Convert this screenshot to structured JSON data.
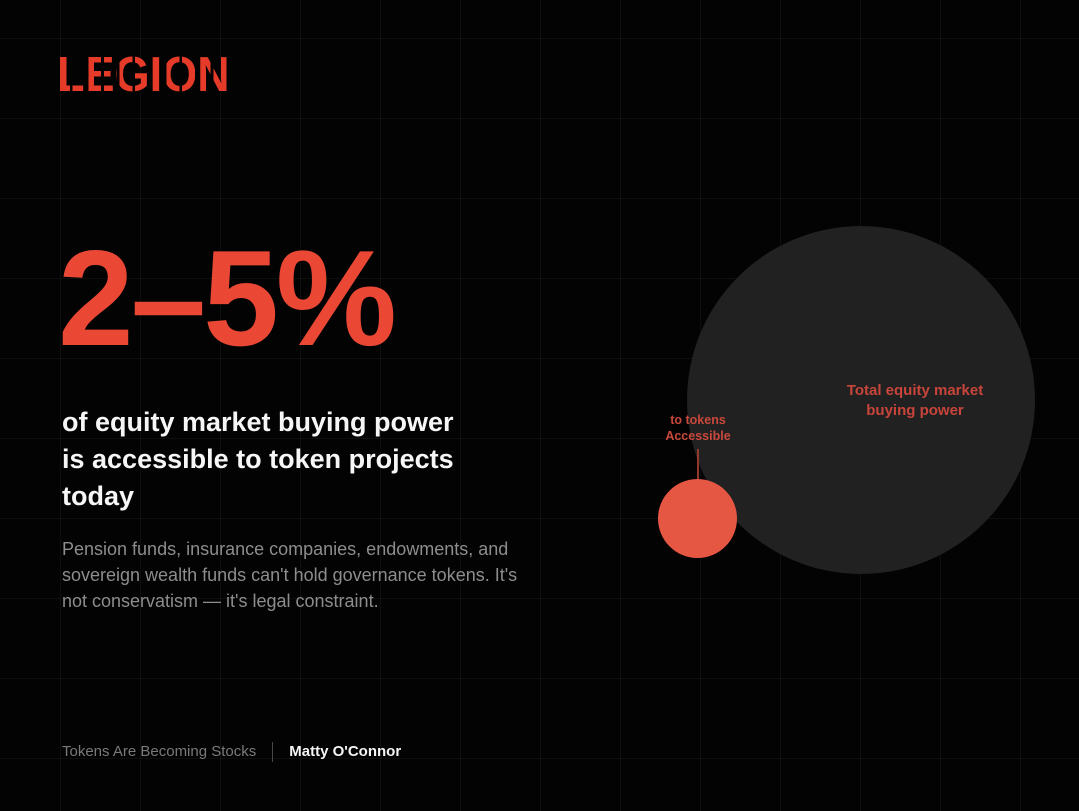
{
  "slide": {
    "logo": "LEGION",
    "headline": "2–5%",
    "subhead_lines": [
      "of equity market buying power",
      "is accessible to token projects",
      "today"
    ],
    "body_lines": [
      "Pension funds, insurance companies, endowments, and",
      "sovereign wealth funds can't hold governance tokens. It's",
      "not conservatism — it's legal constraint."
    ],
    "footer": {
      "deck_title": "Tokens Are Becoming Stocks",
      "author": "Matty O'Connor"
    }
  },
  "chart": {
    "type": "proportional-circles",
    "big_circle": {
      "label_lines": [
        "Total equity market",
        "buying power"
      ],
      "color": "#212121"
    },
    "small_circle": {
      "label_lines": [
        "to tokens",
        "Accessible"
      ],
      "value": "2–5%",
      "color": "#e65743"
    }
  },
  "colors": {
    "background": "#030303",
    "grid_line": "rgba(255,255,255,0.045)",
    "accent_red": "#ea4734",
    "logo_red": "#e73b2a",
    "chart_label_red": "#c7453a",
    "subhead_white": "#f6f6f6",
    "body_gray": "#8d8d8d",
    "footer_gray": "#7a7a7a"
  }
}
